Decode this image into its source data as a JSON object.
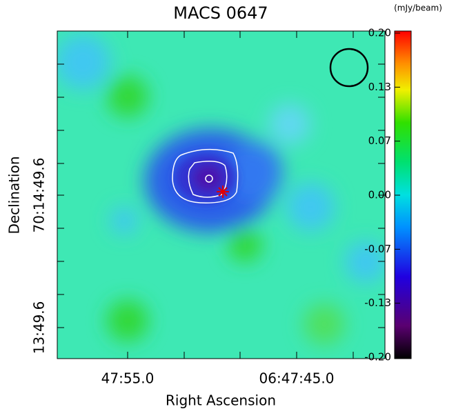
{
  "chart_data": {
    "type": "image",
    "title": "MACS 0647",
    "x_label": "Right Ascension",
    "y_label": "Declination",
    "x_tick_labels": [
      "47:55.0",
      "06:47:45.0"
    ],
    "y_tick_labels": [
      "70:14:49.6",
      "13:49.6"
    ],
    "colorbar_label": "(mJy/beam)",
    "colorbar_lim": [
      -0.2,
      0.2
    ],
    "colorbar_ticks": [
      {
        "value": 0.2,
        "label": "0.20"
      },
      {
        "value": 0.1333,
        "label": "0.13"
      },
      {
        "value": 0.0667,
        "label": "0.07"
      },
      {
        "value": 0,
        "label": "0.00"
      },
      {
        "value": -0.0667,
        "label": "-0.07"
      },
      {
        "value": -0.1333,
        "label": "-0.13"
      },
      {
        "value": -0.2,
        "label": "-0.20"
      }
    ]
  }
}
